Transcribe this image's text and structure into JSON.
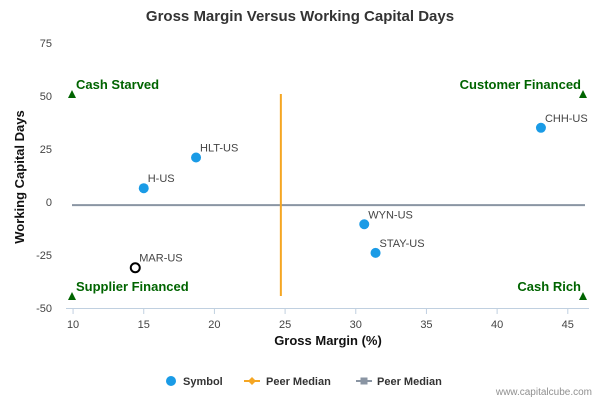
{
  "chart_data": {
    "type": "scatter",
    "title": "Gross Margin Versus Working Capital Days",
    "xlabel": "Gross Margin (%)",
    "ylabel": "Working Capital Days",
    "xlim": [
      9.5,
      46.5
    ],
    "ylim": [
      -50,
      75
    ],
    "x_ticks": [
      10,
      15,
      20,
      25,
      30,
      35,
      40,
      45
    ],
    "y_ticks": [
      75,
      50,
      25,
      0,
      -25,
      -50
    ],
    "grid": false,
    "points": [
      {
        "label": "HLT-US",
        "x": 18.7,
        "y": 21
      },
      {
        "label": "H-US",
        "x": 15.0,
        "y": 6.5
      },
      {
        "label": "CHH-US",
        "x": 43.1,
        "y": 35
      },
      {
        "label": "WYN-US",
        "x": 30.6,
        "y": -10.5
      },
      {
        "label": "STAY-US",
        "x": 31.4,
        "y": -24
      },
      {
        "label": "MAR-US",
        "x": 14.4,
        "y": -31
      }
    ],
    "highlighted_point": "MAR-US",
    "peer_median_x": 24.7,
    "peer_median_y": -1.5,
    "quadrants": {
      "top_left": "Cash Starved",
      "top_right": "Customer Financed",
      "bottom_left": "Supplier Financed",
      "bottom_right": "Cash Rich"
    },
    "legend": [
      {
        "name": "Symbol",
        "marker": "circle"
      },
      {
        "name": "Peer Median",
        "marker": "diamond-line"
      },
      {
        "name": "Peer Median",
        "marker": "square-line"
      }
    ],
    "legend_position": "bottom-center",
    "credit": "www.capitalcube.com",
    "colors": {
      "points": "#1a9be6",
      "vertical_median": "#f5a623",
      "horizontal_median": "#8a95a3",
      "quadrant_labels": "#006400",
      "highlight_stroke": "#000000"
    }
  }
}
